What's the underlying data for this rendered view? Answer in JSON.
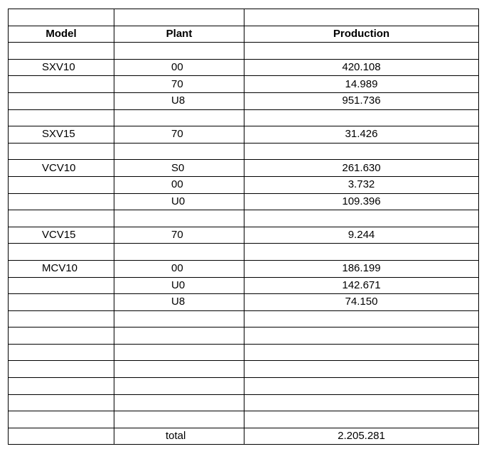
{
  "headers": {
    "model": "Model",
    "plant": "Plant",
    "production": "Production"
  },
  "rows": [
    {
      "model": "SXV10",
      "plant": "00",
      "production": "420.108"
    },
    {
      "model": "",
      "plant": "70",
      "production": "14.989"
    },
    {
      "model": "",
      "plant": "U8",
      "production": "951.736"
    },
    null,
    {
      "model": "SXV15",
      "plant": "70",
      "production": "31.426"
    },
    null,
    {
      "model": "VCV10",
      "plant": "S0",
      "production": "261.630"
    },
    {
      "model": "",
      "plant": "00",
      "production": "3.732"
    },
    {
      "model": "",
      "plant": "U0",
      "production": "109.396"
    },
    null,
    {
      "model": "VCV15",
      "plant": "70",
      "production": "9.244"
    },
    null,
    {
      "model": "MCV10",
      "plant": "00",
      "production": "186.199"
    },
    {
      "model": "",
      "plant": "U0",
      "production": "142.671"
    },
    {
      "model": "",
      "plant": "U8",
      "production": "74.150"
    }
  ],
  "total": {
    "label": "total",
    "value": "2.205.281"
  }
}
